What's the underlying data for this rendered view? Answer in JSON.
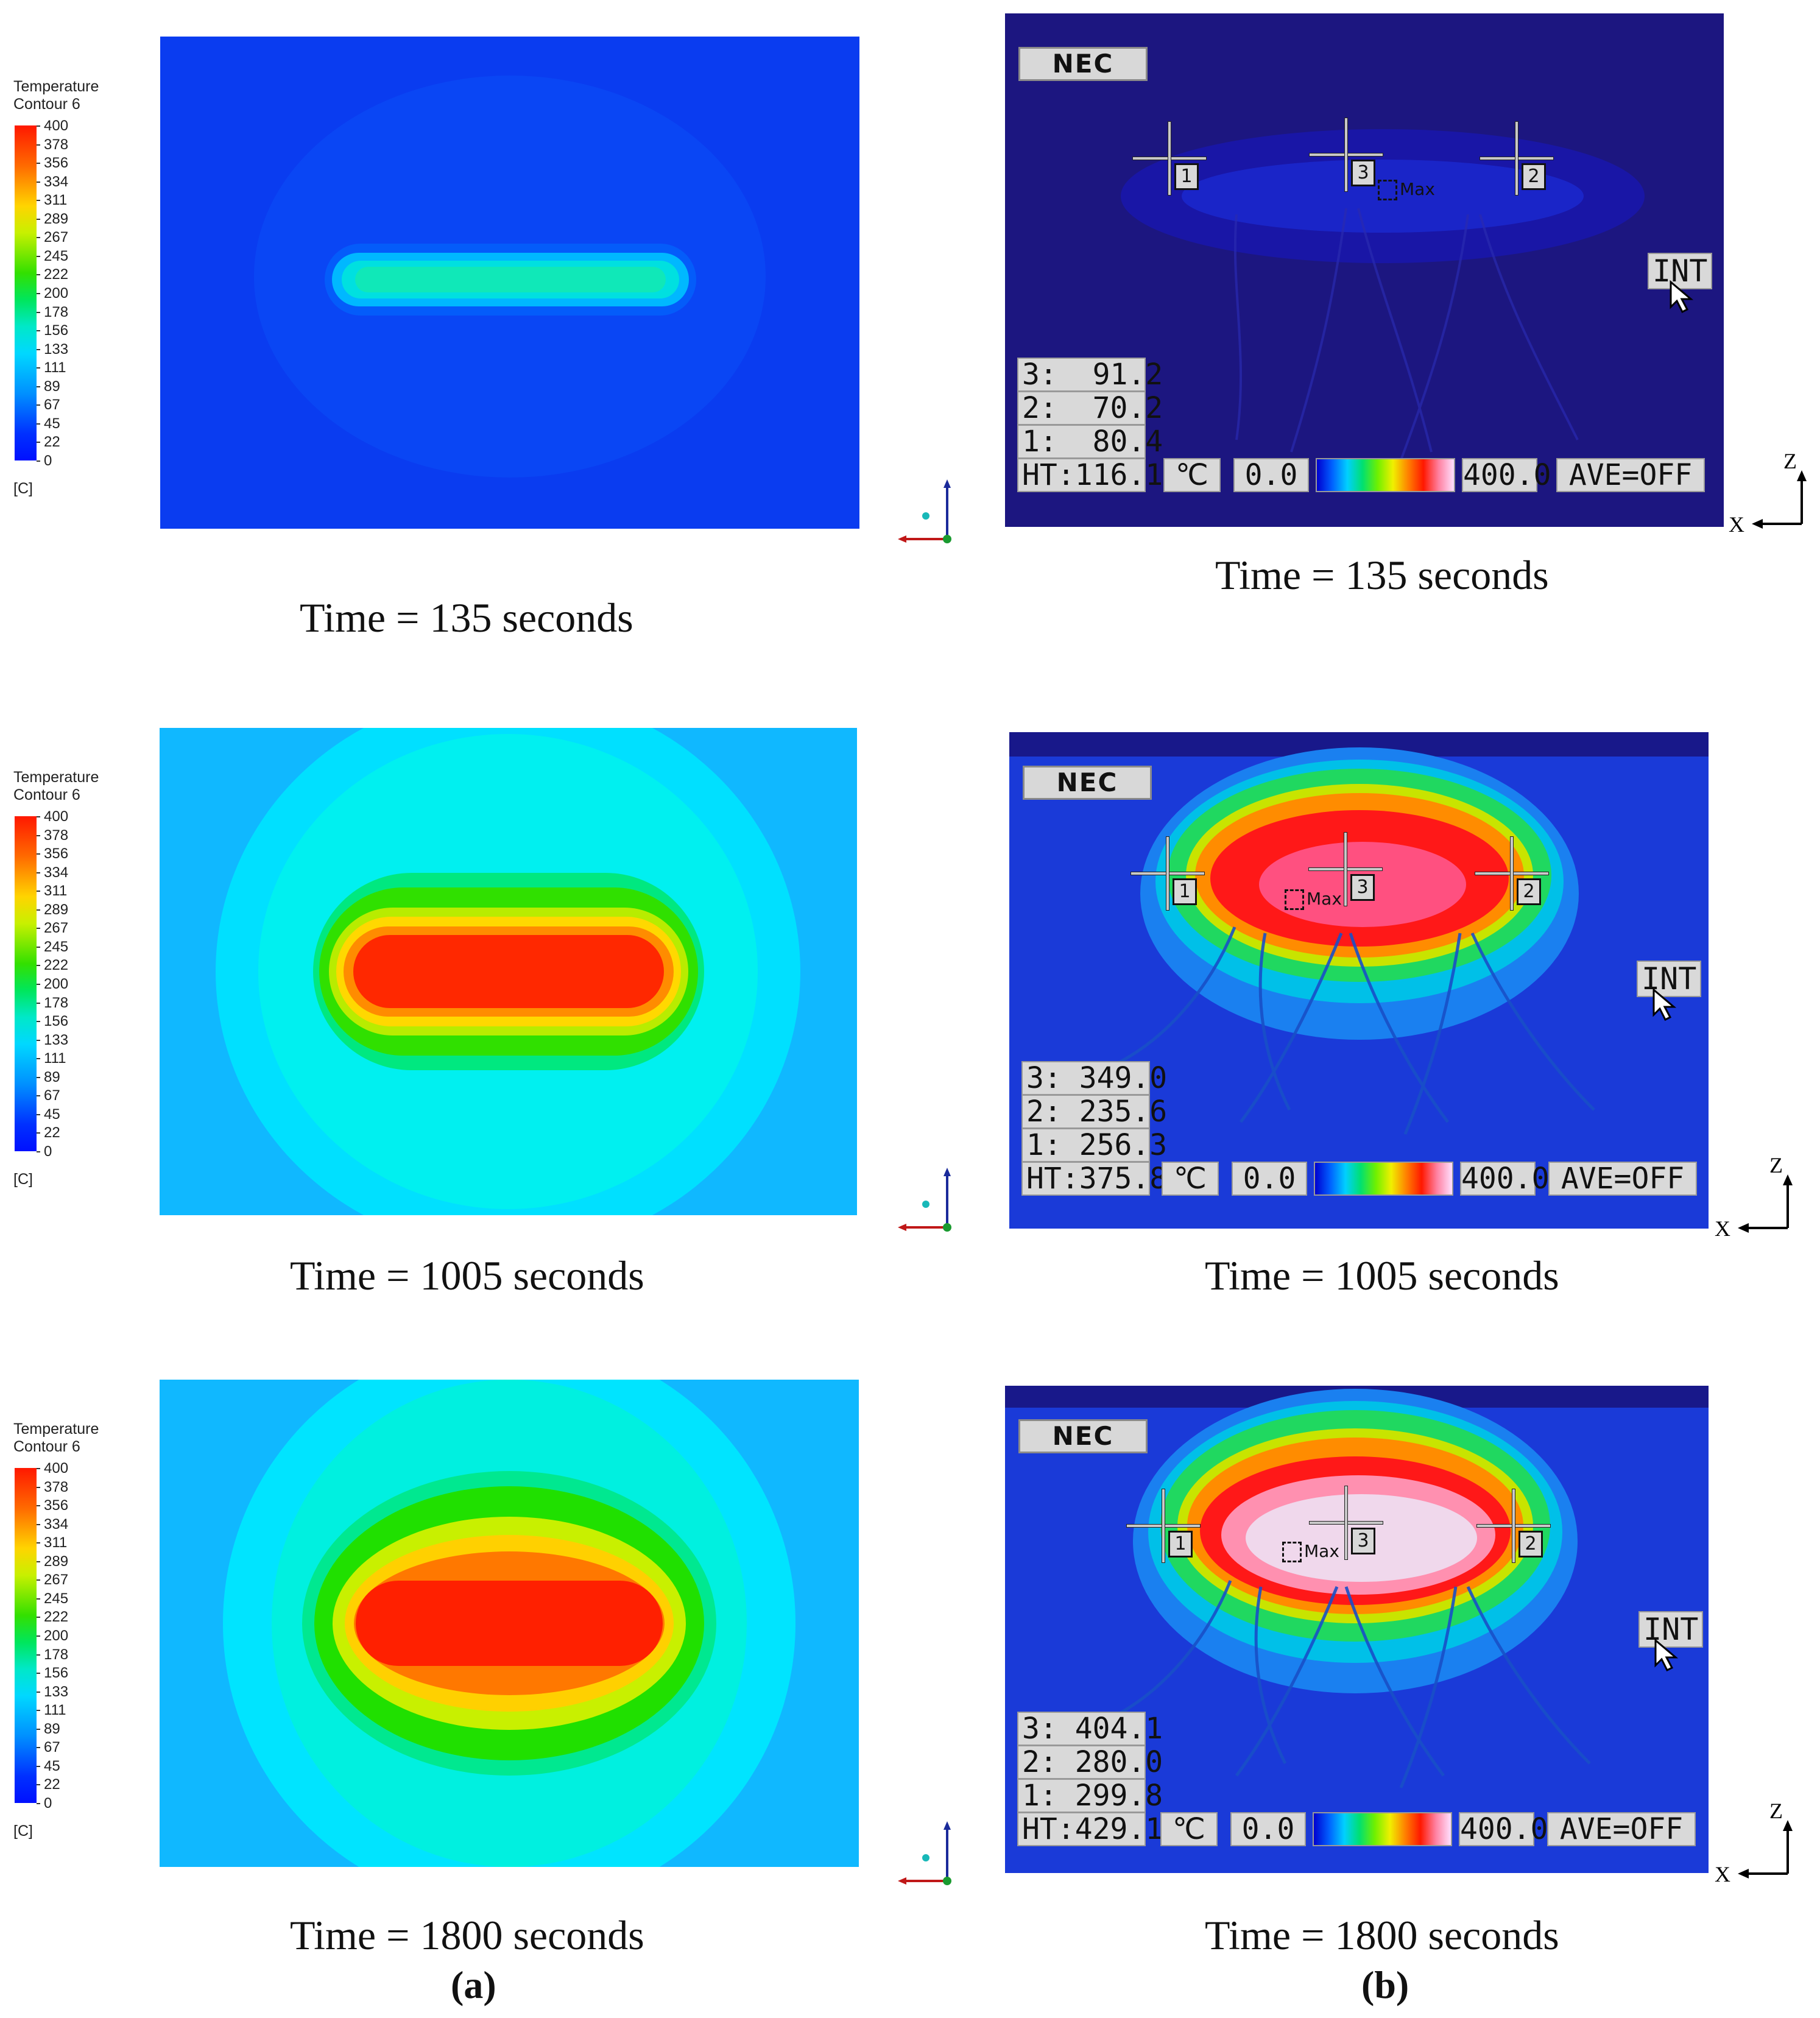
{
  "legend": {
    "title_line1": "Temperature",
    "title_line2": "Contour 6",
    "ticks": [
      "400",
      "378",
      "356",
      "334",
      "311",
      "289",
      "267",
      "245",
      "222",
      "200",
      "178",
      "156",
      "133",
      "111",
      "89",
      "67",
      "45",
      "22",
      "0"
    ],
    "unit": "[C]"
  },
  "panels": [
    {
      "sim_caption": "Time = 135 seconds",
      "cam_caption": "Time = 135 seconds",
      "cam": {
        "brand": "NEC",
        "r3": "3:  91.2",
        "r2": "2:  70.2",
        "r1": "1:  80.4",
        "ht": "HT:116.1",
        "unit_btn": "℃",
        "min": "0.0",
        "max": "400.0",
        "ave": "AVE=OFF",
        "int": "INT",
        "marker1": "1",
        "marker2": "2",
        "marker3": "3",
        "max_label": "Max"
      }
    },
    {
      "sim_caption": "Time = 1005 seconds",
      "cam_caption": "Time = 1005 seconds",
      "cam": {
        "brand": "NEC",
        "r3": "3: 349.0",
        "r2": "2: 235.6",
        "r1": "1: 256.3",
        "ht": "HT:375.8",
        "unit_btn": "℃",
        "min": "0.0",
        "max": "400.0",
        "ave": "AVE=OFF",
        "int": "INT",
        "marker1": "1",
        "marker2": "2",
        "marker3": "3",
        "max_label": "Max"
      }
    },
    {
      "sim_caption": "Time = 1800 seconds",
      "cam_caption": "Time = 1800 seconds",
      "cam": {
        "brand": "NEC",
        "r3": "3: 404.1",
        "r2": "2: 280.0",
        "r1": "1: 299.8",
        "ht": "HT:429.1",
        "unit_btn": "℃",
        "min": "0.0",
        "max": "400.0",
        "ave": "AVE=OFF",
        "int": "INT",
        "marker1": "1",
        "marker2": "2",
        "marker3": "3",
        "max_label": "Max"
      }
    }
  ],
  "axes_labels": {
    "x": "X",
    "z": "Z"
  },
  "part_labels": {
    "a": "(a)",
    "b": "(b)"
  }
}
